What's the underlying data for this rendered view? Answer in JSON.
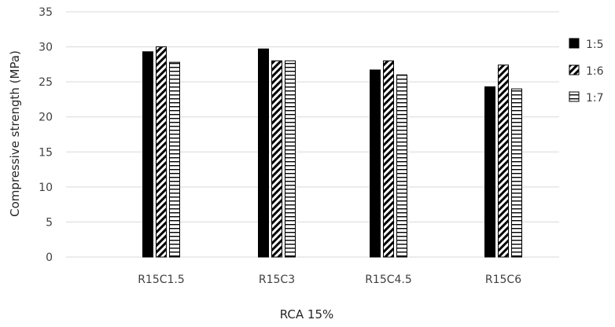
{
  "chart_data": {
    "type": "bar",
    "categories": [
      "R15C1.5",
      "R15C3",
      "R15C4.5",
      "R15C6"
    ],
    "series": [
      {
        "name": "1:5",
        "values": [
          29.3,
          29.7,
          26.7,
          24.3
        ],
        "pattern": "solid"
      },
      {
        "name": "1:6",
        "values": [
          30.0,
          28.0,
          28.0,
          27.4
        ],
        "pattern": "diagonal-stripes"
      },
      {
        "name": "1:7",
        "values": [
          27.8,
          28.0,
          26.0,
          24.0
        ],
        "pattern": "horizontal-lines"
      }
    ],
    "title": "",
    "xlabel": "RCA 15%",
    "ylabel": "Compressive strength (MPa)",
    "ylim": [
      0,
      35
    ],
    "yticks": [
      0,
      5,
      10,
      15,
      20,
      25,
      30,
      35
    ],
    "grid": true,
    "legend_position": "right",
    "colors": {
      "bar_fill": "#000000",
      "bar_stroke": "#000000",
      "grid": "#d9d9d9",
      "text": "#404040"
    }
  }
}
